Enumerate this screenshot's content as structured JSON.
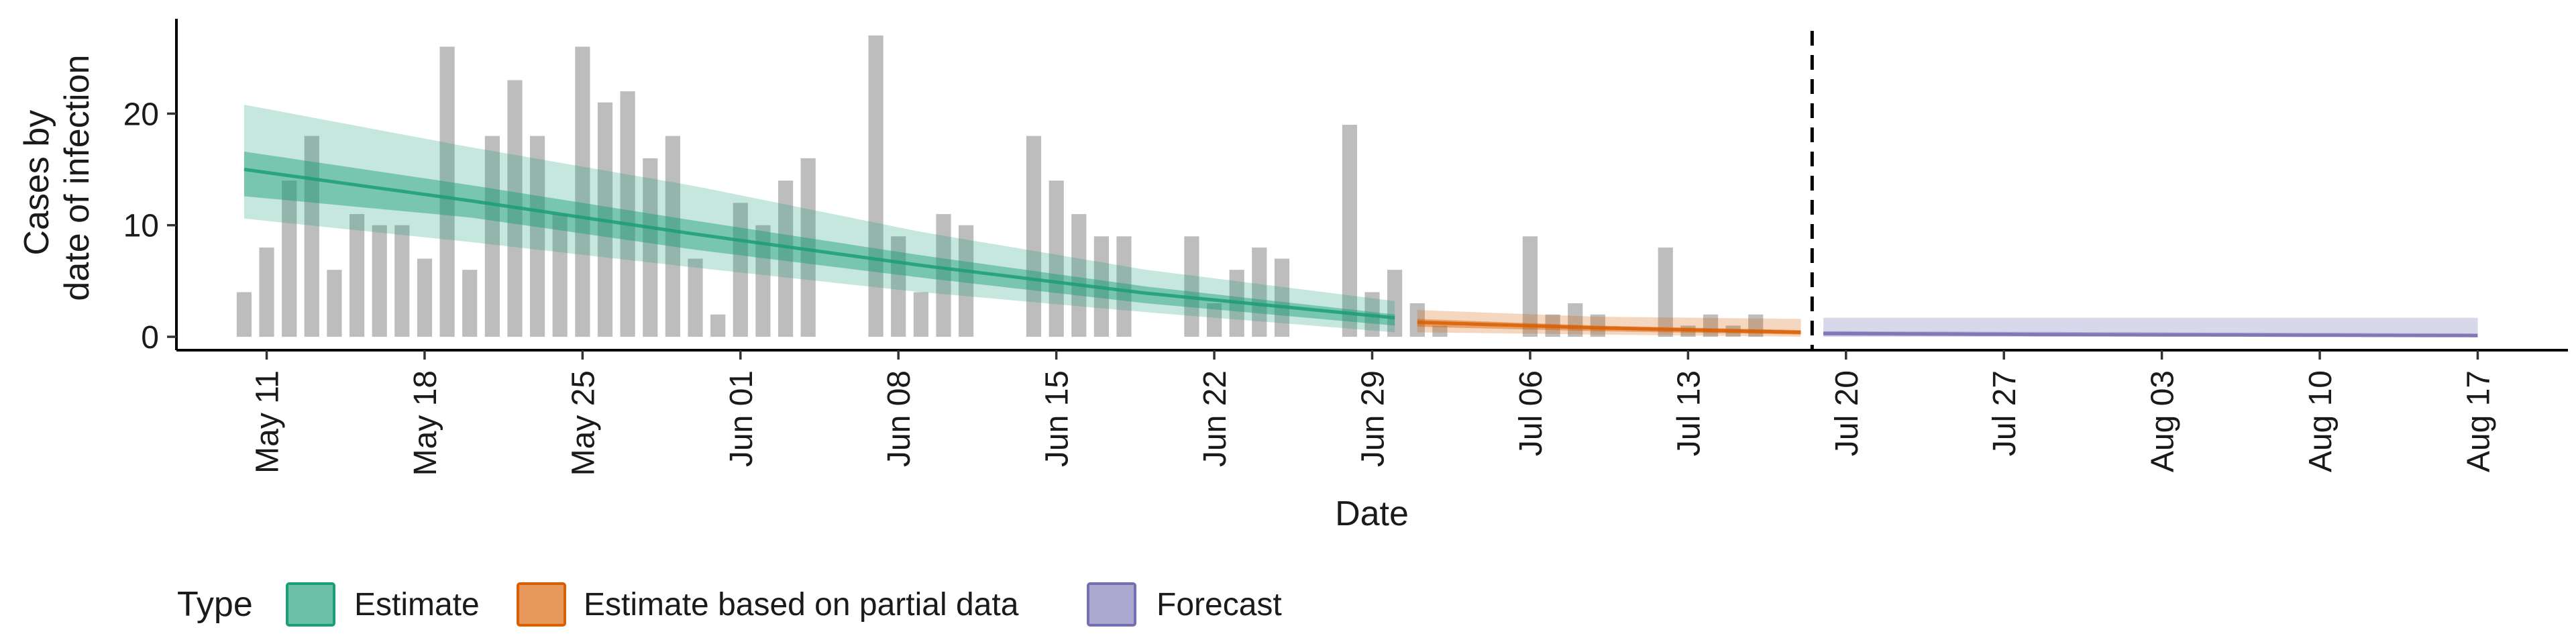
{
  "chart_data": {
    "type": "bar",
    "title": "",
    "xlabel": "Date",
    "ylabel_lines": [
      "Cases by",
      "date of infection"
    ],
    "yticks": [
      0,
      10,
      20
    ],
    "ylim": [
      -1.2,
      28.5
    ],
    "xlim_days": [
      -3,
      103
    ],
    "xticks": [
      {
        "label": "May 11",
        "day": 1
      },
      {
        "label": "May 18",
        "day": 8
      },
      {
        "label": "May 25",
        "day": 15
      },
      {
        "label": "Jun 01",
        "day": 22
      },
      {
        "label": "Jun 08",
        "day": 29
      },
      {
        "label": "Jun 15",
        "day": 36
      },
      {
        "label": "Jun 22",
        "day": 43
      },
      {
        "label": "Jun 29",
        "day": 50
      },
      {
        "label": "Jul 06",
        "day": 57
      },
      {
        "label": "Jul 13",
        "day": 64
      },
      {
        "label": "Jul 20",
        "day": 71
      },
      {
        "label": "Jul 27",
        "day": 78
      },
      {
        "label": "Aug 03",
        "day": 85
      },
      {
        "label": "Aug 10",
        "day": 92
      },
      {
        "label": "Aug 17",
        "day": 99
      }
    ],
    "x_start_date": "May 10",
    "bars": [
      4,
      8,
      14,
      18,
      6,
      11,
      10,
      10,
      7,
      26,
      6,
      18,
      23,
      18,
      11,
      26,
      21,
      22,
      16,
      18,
      7,
      2,
      12,
      10,
      14,
      16,
      0,
      0,
      27,
      9,
      4,
      11,
      10,
      0,
      0,
      18,
      14,
      11,
      9,
      9,
      0,
      0,
      9,
      3,
      6,
      8,
      7,
      0,
      0,
      19,
      4,
      6,
      3,
      1,
      0,
      0,
      0,
      9,
      2,
      3,
      2,
      0,
      0,
      8,
      1,
      2,
      1,
      2
    ],
    "vline_day": 69.5,
    "series": [
      {
        "name": "Estimate",
        "color": "#1B9E77",
        "day_range": [
          0,
          51
        ],
        "median": [
          [
            0,
            15.0
          ],
          [
            10,
            12.2
          ],
          [
            20,
            9.2
          ],
          [
            30,
            6.4
          ],
          [
            40,
            3.9
          ],
          [
            51,
            1.7
          ]
        ],
        "inner": [
          [
            0,
            16.6,
            12.6
          ],
          [
            10,
            13.6,
            10.7
          ],
          [
            20,
            10.4,
            7.8
          ],
          [
            30,
            7.3,
            5.3
          ],
          [
            40,
            4.5,
            3.0
          ],
          [
            51,
            2.0,
            1.0
          ]
        ],
        "outer": [
          [
            0,
            20.8,
            10.6
          ],
          [
            10,
            17.0,
            8.5
          ],
          [
            20,
            13.5,
            6.2
          ],
          [
            30,
            9.4,
            4.0
          ],
          [
            40,
            6.0,
            2.2
          ],
          [
            51,
            3.2,
            0.4
          ]
        ]
      },
      {
        "name": "Estimate based on partial data",
        "color": "#D95F02",
        "day_range": [
          52,
          69
        ],
        "median": [
          [
            52,
            1.3
          ],
          [
            60,
            0.8
          ],
          [
            69,
            0.4
          ]
        ],
        "inner": [
          [
            52,
            1.6,
            0.9
          ],
          [
            60,
            1.0,
            0.5
          ],
          [
            69,
            0.6,
            0.2
          ]
        ],
        "outer": [
          [
            52,
            2.4,
            0.4
          ],
          [
            60,
            1.8,
            0.2
          ],
          [
            69,
            1.6,
            0.0
          ]
        ]
      },
      {
        "name": "Forecast",
        "color": "#7570B3",
        "day_range": [
          70,
          99
        ],
        "median": [
          [
            70,
            0.3
          ],
          [
            80,
            0.2
          ],
          [
            99,
            0.1
          ]
        ],
        "inner": [
          [
            70,
            0.5,
            0.1
          ],
          [
            99,
            0.3,
            0.0
          ]
        ],
        "outer": [
          [
            70,
            1.7,
            0.0
          ],
          [
            99,
            1.7,
            0.0
          ]
        ]
      }
    ]
  },
  "legend": {
    "title": "Type",
    "items": [
      "Estimate",
      "Estimate based on partial data",
      "Forecast"
    ]
  }
}
